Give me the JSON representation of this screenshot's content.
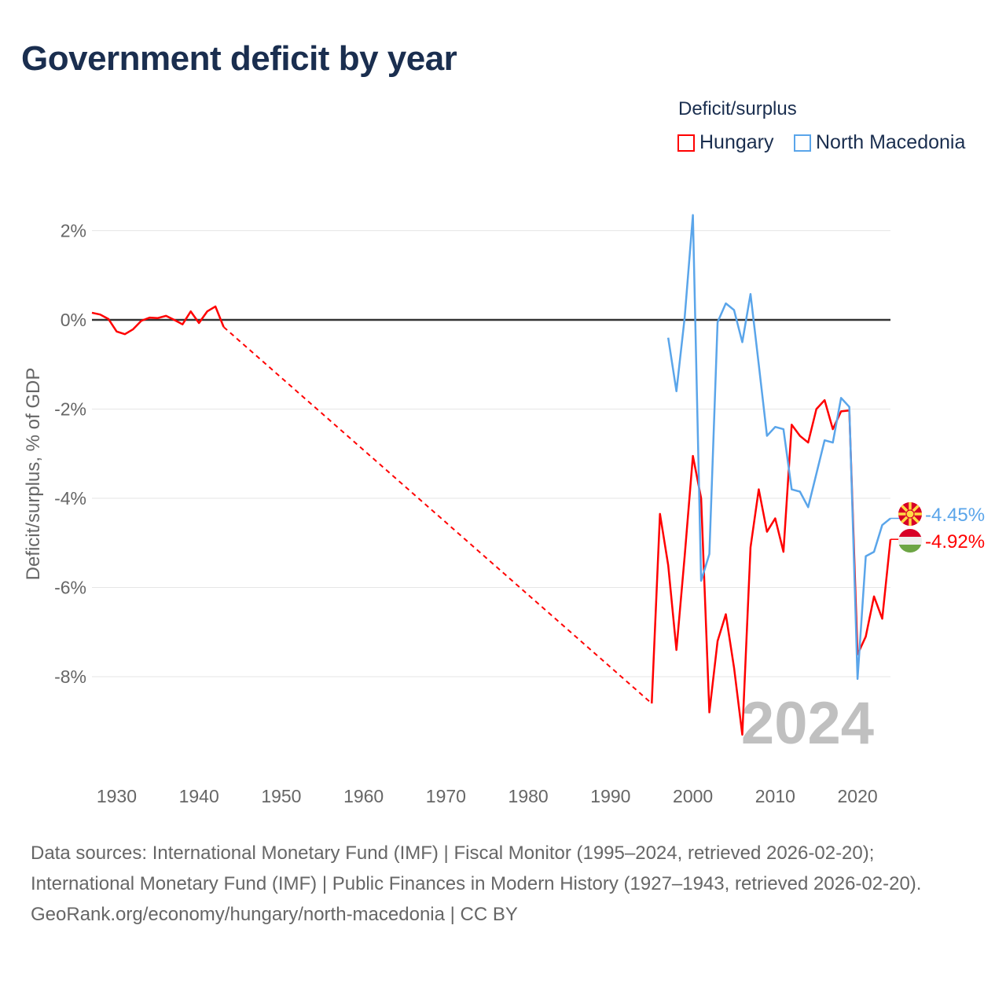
{
  "title": "Government deficit by year",
  "legend": {
    "title": "Deficit/surplus",
    "items": [
      {
        "name": "Hungary",
        "color": "#ff0000"
      },
      {
        "name": "North Macedonia",
        "color": "#5aa5ea"
      }
    ]
  },
  "year_watermark": "2024",
  "footer": {
    "sources": "Data sources: International Monetary Fund (IMF) | Fiscal Monitor (1995–2024, retrieved 2026-02-20); International Monetary Fund (IMF) | Public Finances in Modern History (1927–1943, retrieved 2026-02-20).",
    "credit": "GeoRank.org/economy/hungary/north-macedonia | CC BY"
  },
  "chart_data": {
    "type": "line",
    "title": "Government deficit by year",
    "xlabel": "",
    "ylabel": "Deficit/surplus, % of GDP",
    "xlim": [
      1927,
      2024
    ],
    "ylim": [
      -10,
      3
    ],
    "x_ticks": [
      "1930",
      "1940",
      "1950",
      "1960",
      "1970",
      "1980",
      "1990",
      "2000",
      "2010",
      "2020"
    ],
    "y_ticks": [
      {
        "v": 2,
        "label": "2%"
      },
      {
        "v": 0,
        "label": "0%"
      },
      {
        "v": -2,
        "label": "-2%"
      },
      {
        "v": -4,
        "label": "-4%"
      },
      {
        "v": -6,
        "label": "-6%"
      },
      {
        "v": -8,
        "label": "-8%"
      }
    ],
    "grid": true,
    "legend_position": "top-right",
    "series": [
      {
        "name": "Hungary",
        "color": "#ff0000",
        "end_label": "-4.92%",
        "points": [
          [
            1927,
            0.16
          ],
          [
            1928,
            0.12
          ],
          [
            1929,
            0.02
          ],
          [
            1930,
            -0.26
          ],
          [
            1931,
            -0.32
          ],
          [
            1932,
            -0.21
          ],
          [
            1933,
            -0.02
          ],
          [
            1934,
            0.05
          ],
          [
            1935,
            0.04
          ],
          [
            1936,
            0.09
          ],
          [
            1937,
            0.0
          ],
          [
            1938,
            -0.1
          ],
          [
            1939,
            0.19
          ],
          [
            1940,
            -0.07
          ],
          [
            1941,
            0.19
          ],
          [
            1942,
            0.3
          ],
          [
            1943,
            -0.16
          ],
          [
            1995,
            -8.6
          ],
          [
            1996,
            -4.35
          ],
          [
            1997,
            -5.5
          ],
          [
            1998,
            -7.4
          ],
          [
            1999,
            -5.3
          ],
          [
            2000,
            -3.05
          ],
          [
            2001,
            -4.0
          ],
          [
            2002,
            -8.8
          ],
          [
            2003,
            -7.2
          ],
          [
            2004,
            -6.6
          ],
          [
            2005,
            -7.8
          ],
          [
            2006,
            -9.3
          ],
          [
            2007,
            -5.1
          ],
          [
            2008,
            -3.8
          ],
          [
            2009,
            -4.75
          ],
          [
            2010,
            -4.45
          ],
          [
            2011,
            -5.2
          ],
          [
            2012,
            -2.35
          ],
          [
            2013,
            -2.6
          ],
          [
            2014,
            -2.75
          ],
          [
            2015,
            -2.0
          ],
          [
            2016,
            -1.8
          ],
          [
            2017,
            -2.45
          ],
          [
            2018,
            -2.05
          ],
          [
            2019,
            -2.03
          ],
          [
            2020,
            -7.5
          ],
          [
            2021,
            -7.1
          ],
          [
            2022,
            -6.2
          ],
          [
            2023,
            -6.7
          ],
          [
            2024,
            -4.92
          ]
        ]
      },
      {
        "name": "North Macedonia",
        "color": "#5aa5ea",
        "end_label": "-4.45%",
        "points": [
          [
            1997,
            -0.4
          ],
          [
            1998,
            -1.6
          ],
          [
            1999,
            0.05
          ],
          [
            2000,
            2.35
          ],
          [
            2001,
            -5.85
          ],
          [
            2002,
            -5.25
          ],
          [
            2003,
            -0.05
          ],
          [
            2004,
            0.37
          ],
          [
            2005,
            0.22
          ],
          [
            2006,
            -0.5
          ],
          [
            2007,
            0.58
          ],
          [
            2008,
            -1.0
          ],
          [
            2009,
            -2.6
          ],
          [
            2010,
            -2.4
          ],
          [
            2011,
            -2.45
          ],
          [
            2012,
            -3.8
          ],
          [
            2013,
            -3.85
          ],
          [
            2014,
            -4.2
          ],
          [
            2015,
            -3.45
          ],
          [
            2016,
            -2.7
          ],
          [
            2017,
            -2.75
          ],
          [
            2018,
            -1.75
          ],
          [
            2019,
            -1.95
          ],
          [
            2020,
            -8.05
          ],
          [
            2021,
            -5.3
          ],
          [
            2022,
            -5.2
          ],
          [
            2023,
            -4.6
          ],
          [
            2024,
            -4.45
          ]
        ]
      }
    ]
  }
}
